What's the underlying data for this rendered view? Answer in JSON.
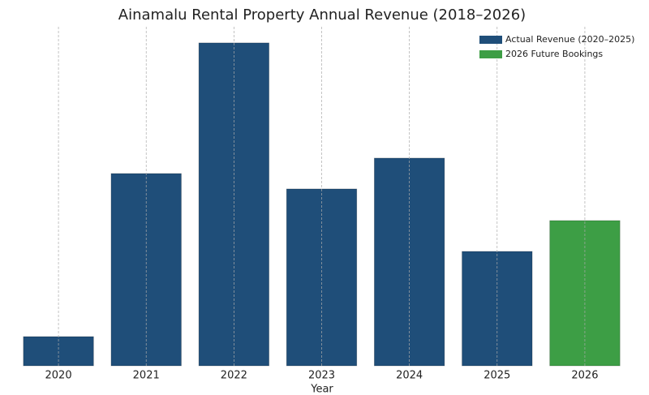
{
  "chart_data": {
    "type": "bar",
    "title": "Ainamalu Rental Property Annual Revenue (2018–2026)",
    "x_label": "Year",
    "categories": [
      "2020",
      "2021",
      "2022",
      "2023",
      "2024",
      "2025",
      "2026"
    ],
    "series": [
      {
        "name": "Actual Revenue (2020–2025)",
        "color": "#1f4e79",
        "values": [
          36,
          237,
          398,
          218,
          256,
          141,
          null
        ]
      },
      {
        "name": "2026 Future Bookings",
        "color": "#3d9e45",
        "values": [
          null,
          null,
          null,
          null,
          null,
          null,
          179
        ]
      }
    ],
    "grid": true,
    "legend": "upper right"
  }
}
